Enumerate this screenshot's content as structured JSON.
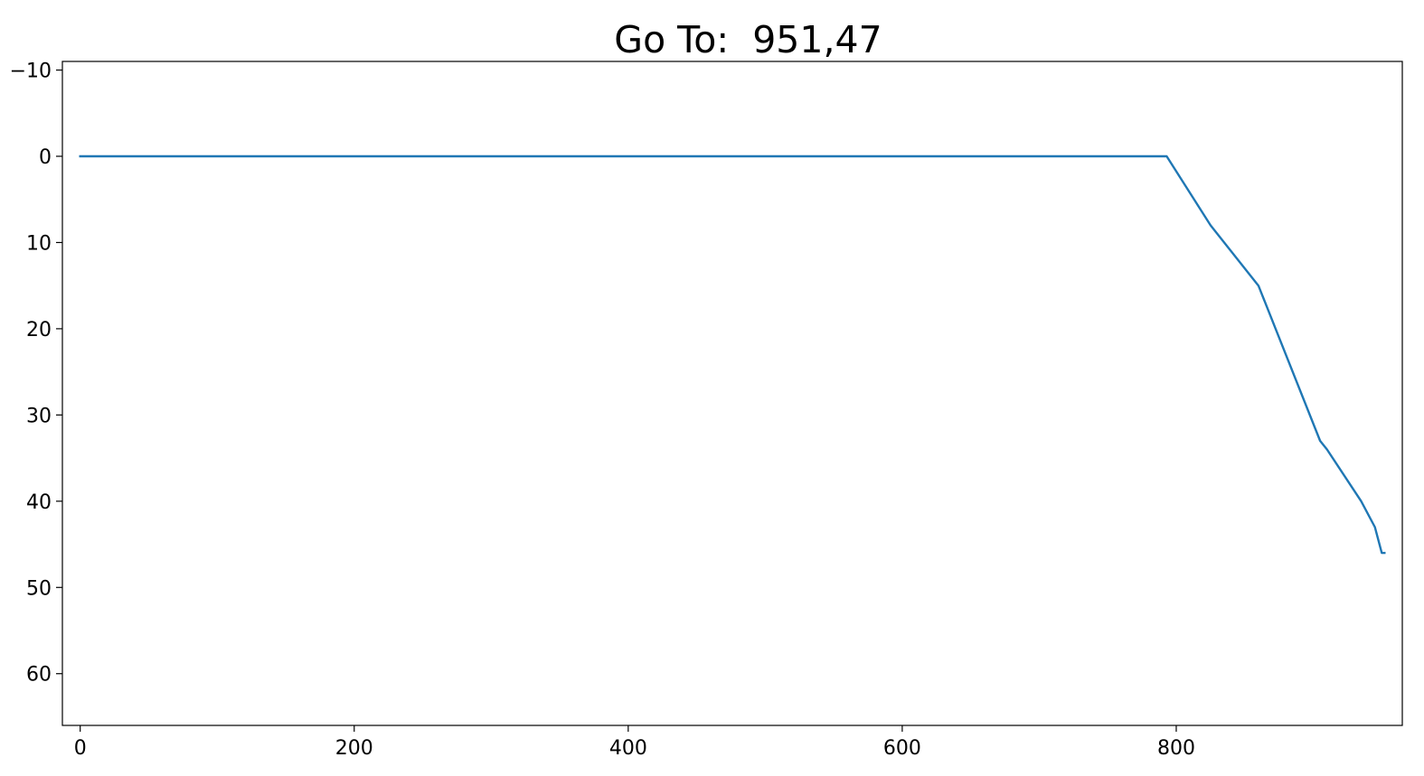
{
  "chart_data": {
    "type": "line",
    "title": "Go To:  951,47",
    "xlabel": "",
    "ylabel": "",
    "xlim": [
      -13,
      965
    ],
    "ylim": [
      66,
      -11
    ],
    "y_inverted": true,
    "grid": false,
    "legend": "none",
    "x_ticks": [
      {
        "value": 0,
        "label": "0"
      },
      {
        "value": 200,
        "label": "200"
      },
      {
        "value": 400,
        "label": "400"
      },
      {
        "value": 600,
        "label": "600"
      },
      {
        "value": 800,
        "label": "800"
      }
    ],
    "y_ticks": [
      {
        "value": -10,
        "label": "−10"
      },
      {
        "value": 0,
        "label": "0"
      },
      {
        "value": 10,
        "label": "10"
      },
      {
        "value": 20,
        "label": "20"
      },
      {
        "value": 30,
        "label": "30"
      },
      {
        "value": 40,
        "label": "40"
      },
      {
        "value": 50,
        "label": "50"
      },
      {
        "value": 60,
        "label": "60"
      }
    ],
    "series": [
      {
        "color": "#1f77b4",
        "x": [
          0,
          793,
          825,
          860,
          905,
          910,
          935,
          945,
          950,
          952
        ],
        "y": [
          0,
          0,
          8,
          15,
          33,
          34,
          40,
          43,
          46,
          46
        ]
      }
    ]
  }
}
